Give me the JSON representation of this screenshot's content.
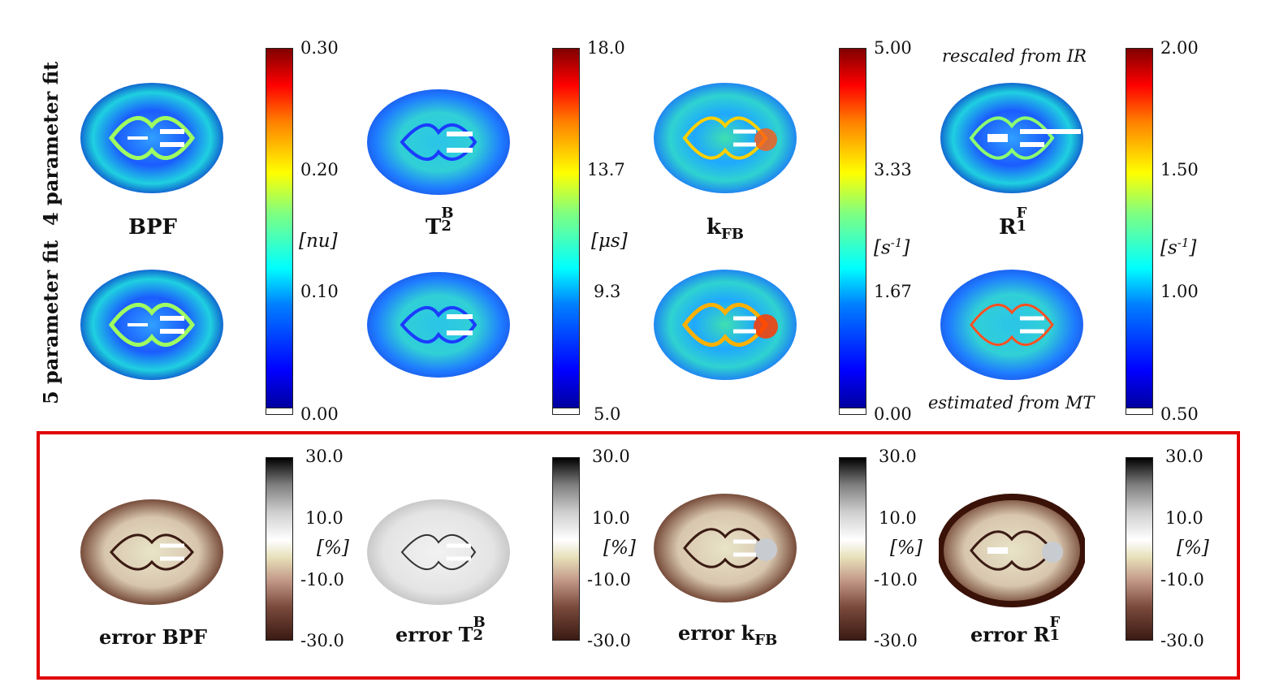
{
  "row_labels": {
    "top": "4 parameter fit",
    "bottom": "5 parameter fit"
  },
  "panels": [
    {
      "label": "BPF",
      "label_sub": "",
      "label_sup": "",
      "unit": "[nu]",
      "ticks": [
        "0.30",
        "0.20",
        "0.10",
        "0.00"
      ],
      "error_label": "error BPF",
      "error_sub": "",
      "error_sup": ""
    },
    {
      "label": "T",
      "label_sub": "2",
      "label_sup": "B",
      "unit": "[μs]",
      "ticks": [
        "18.0",
        "13.7",
        "9.3",
        "5.0"
      ],
      "error_label": "error T",
      "error_sub": "2",
      "error_sup": "B"
    },
    {
      "label": "k",
      "label_sub": "FB",
      "label_sup": "",
      "unit": "[s",
      "unit_sup": "-1",
      "unit_close": "]",
      "ticks": [
        "5.00",
        "3.33",
        "1.67",
        "0.00"
      ],
      "error_label": "error k",
      "error_sub": "FB",
      "error_sup": ""
    },
    {
      "label": "R",
      "label_sub": "1",
      "label_sup": "F",
      "unit": "[s",
      "unit_sup": "-1",
      "unit_close": "]",
      "ticks": [
        "2.00",
        "1.50",
        "1.00",
        "0.50"
      ],
      "error_label": "error R",
      "error_sub": "1",
      "error_sup": "F"
    }
  ],
  "notes": {
    "top": "rescaled from IR",
    "bottom": "estimated from MT"
  },
  "error_colorbar": {
    "unit": "[%]",
    "ticks": [
      "30.0",
      "10.0",
      "-10.0",
      "-30.0"
    ]
  },
  "colors": {
    "highlight_box": "#e00000"
  }
}
